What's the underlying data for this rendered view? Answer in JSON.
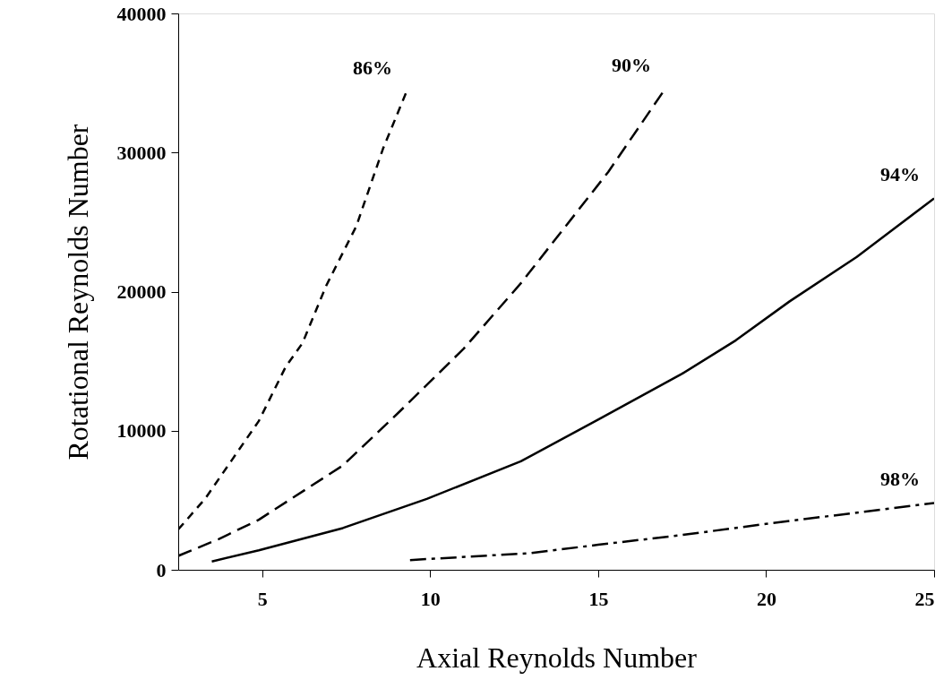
{
  "chart_data": {
    "type": "line",
    "xlabel": "Axial Reynolds Number",
    "ylabel": "Rotational Reynolds Number",
    "xlim": [
      2.5,
      25
    ],
    "xticks": [
      5,
      10,
      15,
      20,
      25
    ],
    "ylim": [
      0,
      40000
    ],
    "yticks": [
      0,
      10000,
      20000,
      30000,
      40000
    ],
    "grid": false,
    "marker": "none",
    "series": [
      {
        "name": "86%",
        "color": "#000000",
        "line_style": "dotted",
        "x": [
          2.5,
          3.3,
          4.1,
          4.9,
          5.7,
          6.2,
          6.9,
          7.8,
          8.6,
          9.3
        ],
        "values": [
          2900,
          5100,
          7900,
          10700,
          14600,
          16300,
          20400,
          24700,
          30300,
          34400
        ]
      },
      {
        "name": "90%",
        "color": "#000000",
        "line_style": "dashed",
        "x": [
          2.5,
          3.7,
          4.9,
          7.4,
          9.1,
          11.0,
          12.7,
          15.3,
          17.0
        ],
        "values": [
          1000,
          2200,
          3600,
          7500,
          11400,
          15900,
          20600,
          28600,
          34600
        ]
      },
      {
        "name": "94%",
        "color": "#000000",
        "line_style": "solid",
        "x": [
          3.5,
          4.9,
          7.4,
          9.9,
          12.7,
          15.0,
          17.5,
          19.1,
          20.7,
          22.7,
          25
        ],
        "values": [
          600,
          1400,
          3000,
          5100,
          7800,
          10800,
          14100,
          16500,
          19300,
          22500,
          26700
        ]
      },
      {
        "name": "98%",
        "color": "#000000",
        "line_style": "dashdot",
        "x": [
          9.4,
          13,
          15,
          17.5,
          20,
          25
        ],
        "values": [
          700,
          1200,
          1800,
          2500,
          3300,
          4800
        ]
      }
    ]
  }
}
